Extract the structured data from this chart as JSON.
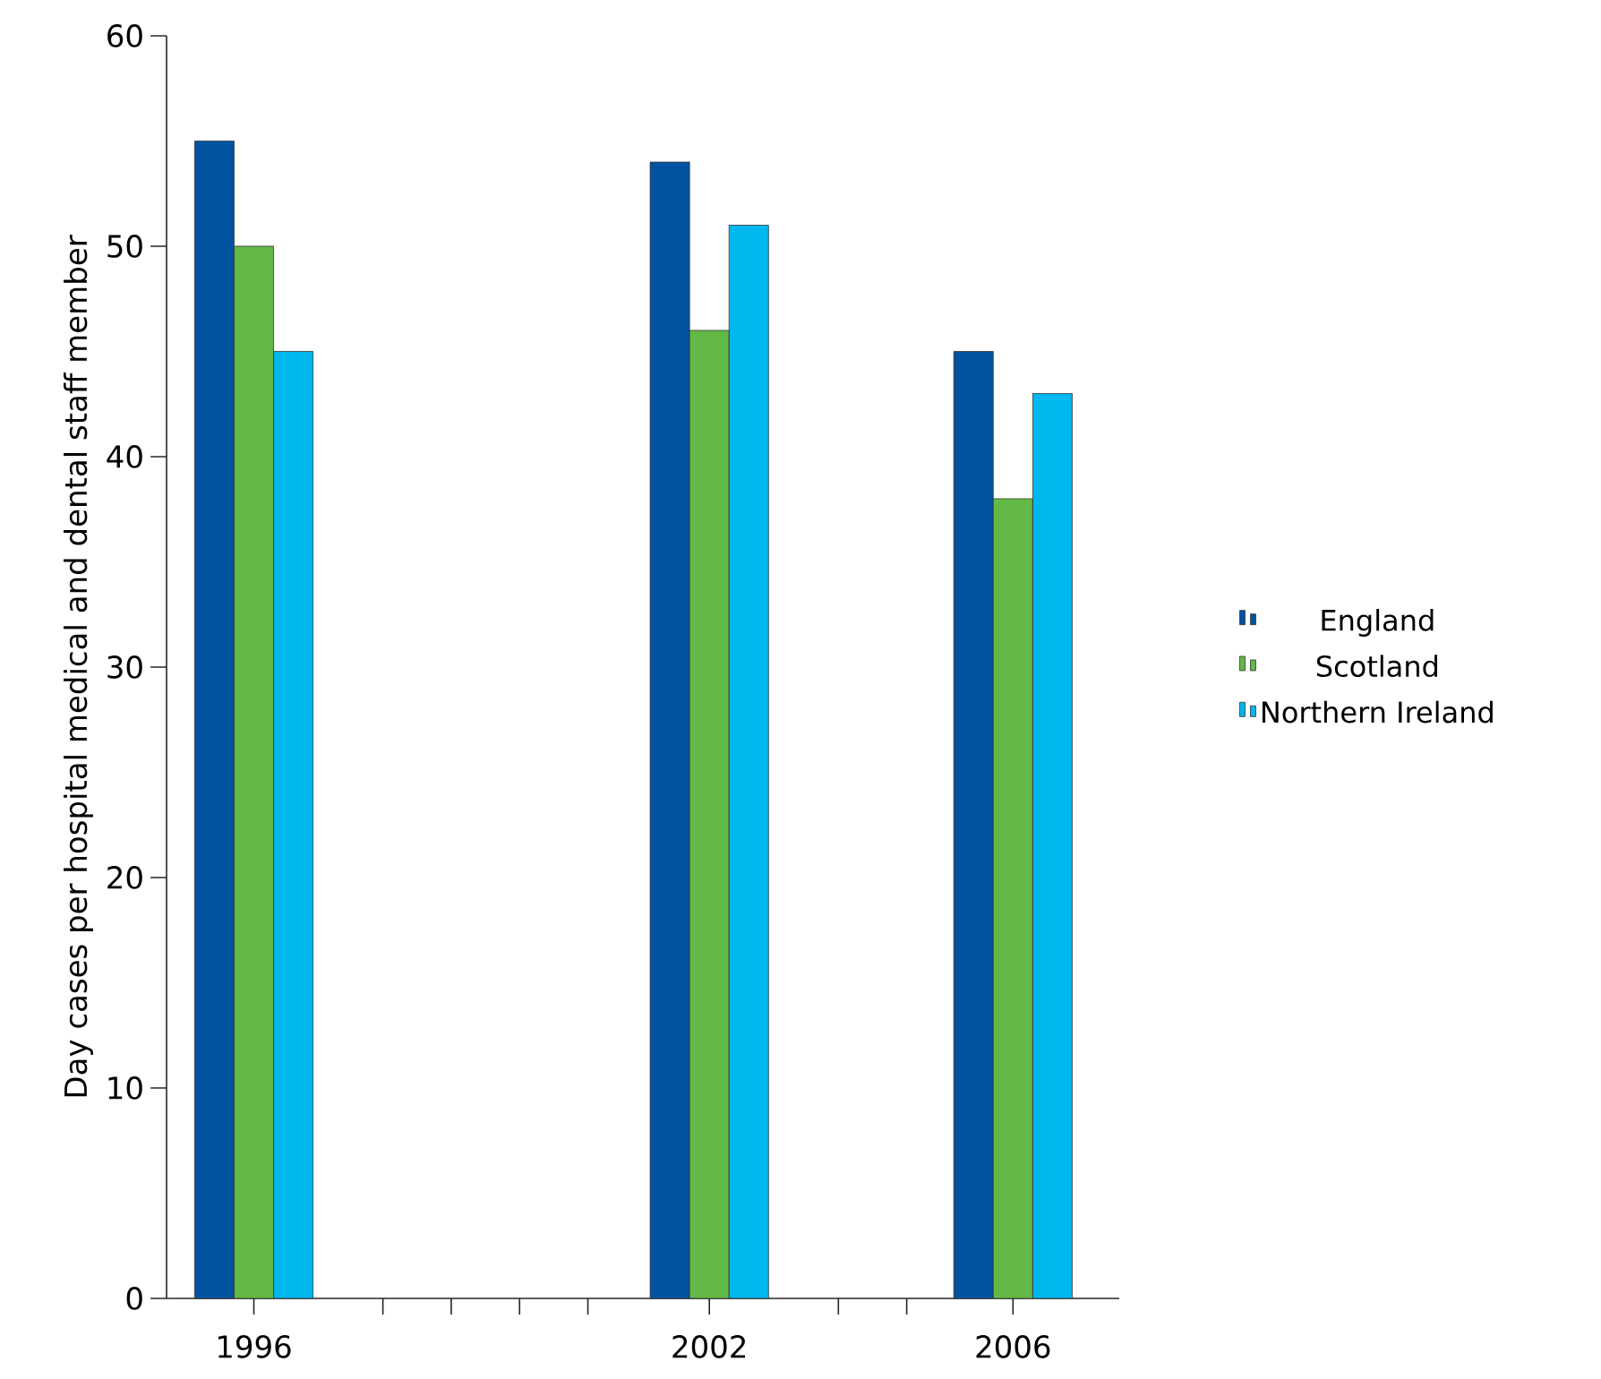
{
  "chart_data": {
    "type": "bar",
    "ylabel": "Day cases per hospital medical and dental staff member",
    "x": [
      1996,
      2002,
      2006
    ],
    "series": [
      {
        "name": "England",
        "color": "#0053a1",
        "values": [
          55,
          54,
          45
        ]
      },
      {
        "name": "Scotland",
        "color": "#63b946",
        "values": [
          50,
          46,
          38
        ]
      },
      {
        "name": "Northern Ireland",
        "color": "#00b7ee",
        "values": [
          45,
          51,
          43
        ]
      }
    ],
    "xlim": [
      1994.85,
      2007.4
    ],
    "xticks": [
      1996,
      {
        "value": 1997.7,
        "label": null
      },
      {
        "value": 1998.6,
        "label": null
      },
      {
        "value": 1999.5,
        "label": null
      },
      {
        "value": 2000.4,
        "label": null
      },
      2002,
      {
        "value": 2003.7,
        "label": null
      },
      {
        "value": 2004.6,
        "label": null
      },
      2006
    ],
    "ylim": [
      0,
      60
    ],
    "yticks": [
      0,
      10,
      20,
      30,
      40,
      50,
      60
    ],
    "grid": false,
    "legend": "right"
  }
}
